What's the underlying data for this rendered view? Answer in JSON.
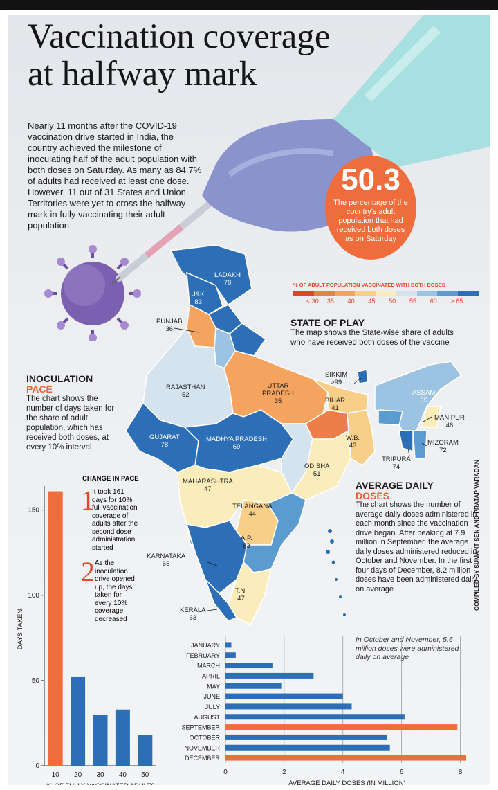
{
  "header": {
    "title_line1": "Vaccination coverage",
    "title_line2": "at halfway mark",
    "intro": "Nearly 11 months after the COVID-19 vaccination drive started in India, the country achieved the milestone of inoculating half of the adult population with both doses on Saturday. As many as 84.7% of adults had received at least one dose. However, 11 out of 31 States and Union Territories were yet to cross the halfway mark in fully vaccinating their adult population"
  },
  "highlight": {
    "value": "50.3",
    "caption": "The percentage of the country's adult population that had received both doses as on Saturday"
  },
  "legend": {
    "title": "% OF ADULT POPULATION VACCINATED WITH BOTH DOSES",
    "labels": [
      "< 30",
      "35",
      "40",
      "45",
      "50",
      "55",
      "60",
      "> 65"
    ],
    "colors": [
      "#e0452a",
      "#ed7d49",
      "#f5a45f",
      "#f8cf89",
      "#fbedbb",
      "#d5e3ef",
      "#9cc4e2",
      "#5b9bd0",
      "#2d6fb6"
    ]
  },
  "state_of_play": {
    "heading": "STATE OF PLAY",
    "body": "The map shows the State-wise share of adults who have received both doses of the vaccine"
  },
  "map_states": [
    {
      "name": "LADAKH",
      "value": "78"
    },
    {
      "name": "J&K",
      "value": "83"
    },
    {
      "name": "PUNJAB",
      "value": "36"
    },
    {
      "name": "RAJASTHAN",
      "value": "52"
    },
    {
      "name": "UTTAR PRADESH",
      "value": "35"
    },
    {
      "name": "SIKKIM",
      "value": ">99"
    },
    {
      "name": "ASSAM",
      "value": "55"
    },
    {
      "name": "BIHAR",
      "value": "41"
    },
    {
      "name": "MANIPUR",
      "value": "46"
    },
    {
      "name": "GUJARAT",
      "value": "78"
    },
    {
      "name": "MADHYA PRADESH",
      "value": "69"
    },
    {
      "name": "W.B.",
      "value": "43"
    },
    {
      "name": "MIZORAM",
      "value": "72"
    },
    {
      "name": "TRIPURA",
      "value": "74"
    },
    {
      "name": "ODISHA",
      "value": "51"
    },
    {
      "name": "MAHARASHTRA",
      "value": "47"
    },
    {
      "name": "TELANGANA",
      "value": "44"
    },
    {
      "name": "A.P.",
      "value": "63"
    },
    {
      "name": "KARNATAKA",
      "value": "66"
    },
    {
      "name": "T.N.",
      "value": "47"
    },
    {
      "name": "KERALA",
      "value": "63"
    }
  ],
  "inoculation": {
    "heading": "INOCULATION",
    "sub": "PACE",
    "body": "The chart shows the number of days taken for the share of adult population, which has received both doses, at every 10% interval"
  },
  "change_in_pace": {
    "heading": "CHANGE IN PACE",
    "note1": "It took 161 days for 10% full vaccination coverage of adults after the second dose administration started",
    "note2": "As the inoculation drive opened up, the days taken for every 10% coverage decreased"
  },
  "average_daily": {
    "heading": "AVERAGE DAILY",
    "sub": "DOSES",
    "body": "The chart shows the number of average daily doses administered in each month since the vaccination drive began. After peaking at 7.9 million in September, the average daily doses administered reduced in October and November. In the first four days of December, 8.2 million doses have been administered daily on average",
    "annotation": "In October and November, 5.6 million doses were administered daily on average"
  },
  "credit": "COMPILED BY SUMANT SEN AND PRATAP VARADAN",
  "chart_data": [
    {
      "type": "bar",
      "title": "",
      "categories": [
        "10",
        "20",
        "30",
        "40",
        "50"
      ],
      "values": [
        161,
        52,
        30,
        33,
        18
      ],
      "colors": [
        "#ef6d3d",
        "#2d6fb6",
        "#2d6fb6",
        "#2d6fb6",
        "#2d6fb6"
      ],
      "xlabel": "% OF FULLY VACCINATED ADULTS",
      "ylabel": "DAYS TAKEN",
      "ylim": [
        0,
        160
      ],
      "yticks": [
        0,
        50,
        100,
        150
      ],
      "grid": false
    },
    {
      "type": "bar",
      "orientation": "horizontal",
      "title": "",
      "categories": [
        "JANUARY",
        "FEBRUARY",
        "MARCH",
        "APRIL",
        "MAY",
        "JUNE",
        "JULY",
        "AUGUST",
        "SEPTEMBER",
        "OCTOBER",
        "NOVEMBER",
        "DECEMBER"
      ],
      "values": [
        0.2,
        0.35,
        1.6,
        3.0,
        1.9,
        4.0,
        4.3,
        6.1,
        7.9,
        5.5,
        5.6,
        8.2
      ],
      "colors": [
        "#2d6fb6",
        "#2d6fb6",
        "#2d6fb6",
        "#2d6fb6",
        "#2d6fb6",
        "#2d6fb6",
        "#2d6fb6",
        "#2d6fb6",
        "#ef6d3d",
        "#2d6fb6",
        "#2d6fb6",
        "#ef6d3d"
      ],
      "xlabel": "AVERAGE DAILY DOSES (IN MILLION)",
      "ylabel": "",
      "xlim": [
        0,
        8.2
      ],
      "xticks": [
        0,
        2,
        4,
        6,
        8
      ],
      "grid": true
    }
  ]
}
